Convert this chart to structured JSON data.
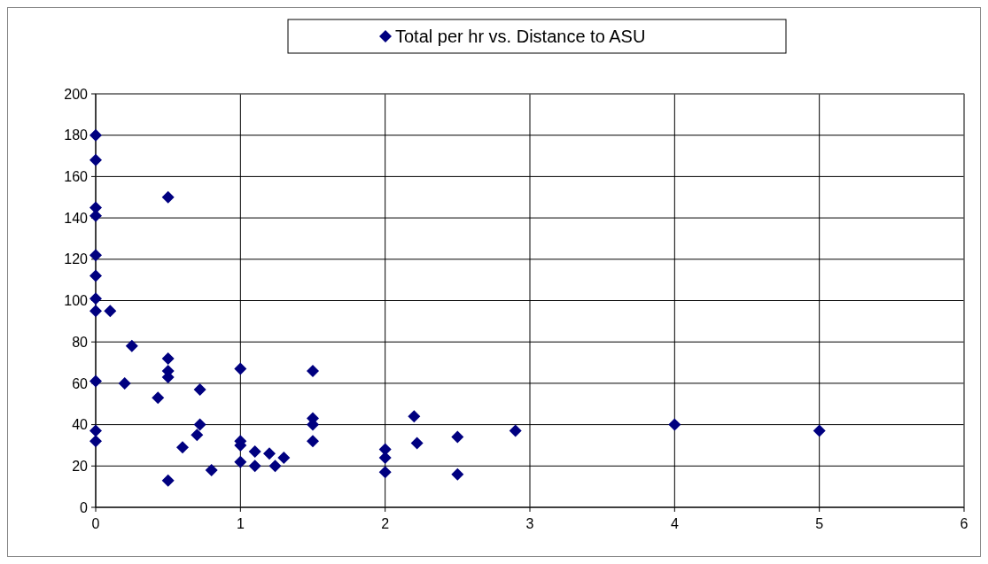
{
  "chart_data": {
    "type": "scatter",
    "xlim": [
      0,
      6
    ],
    "xticks": [
      0,
      1,
      2,
      3,
      4,
      5,
      6
    ],
    "ylim": [
      0,
      200
    ],
    "yticks": [
      0,
      20,
      40,
      60,
      80,
      100,
      120,
      140,
      160,
      180,
      200
    ],
    "grid": true,
    "legend": "top",
    "marker": "diamond",
    "series": [
      {
        "name": "Total per hr vs. Distance to ASU",
        "color": "#000080",
        "x": [
          0,
          0,
          0,
          0,
          0,
          0,
          0,
          0,
          0,
          0,
          0,
          0.1,
          0.25,
          0.2,
          0.43,
          0.5,
          0.5,
          0.5,
          0.5,
          0.5,
          0.6,
          0.7,
          0.72,
          0.72,
          0.8,
          1,
          1,
          1,
          1,
          1.1,
          1.1,
          1.2,
          1.24,
          1.3,
          1.5,
          1.5,
          1.5,
          1.5,
          2,
          2,
          2,
          2.2,
          2.22,
          2.5,
          2.5,
          2.9,
          4,
          5
        ],
        "values": [
          180,
          168,
          145,
          141,
          122,
          112,
          101,
          95,
          61,
          37,
          32,
          95,
          78,
          60,
          53,
          150,
          72,
          66,
          63,
          13,
          29,
          35,
          40,
          57,
          18,
          67,
          32,
          30,
          22,
          27,
          20,
          26,
          20,
          24,
          66,
          43,
          40,
          32,
          28,
          24,
          17,
          44,
          31,
          34,
          16,
          37,
          40,
          37
        ]
      }
    ]
  }
}
